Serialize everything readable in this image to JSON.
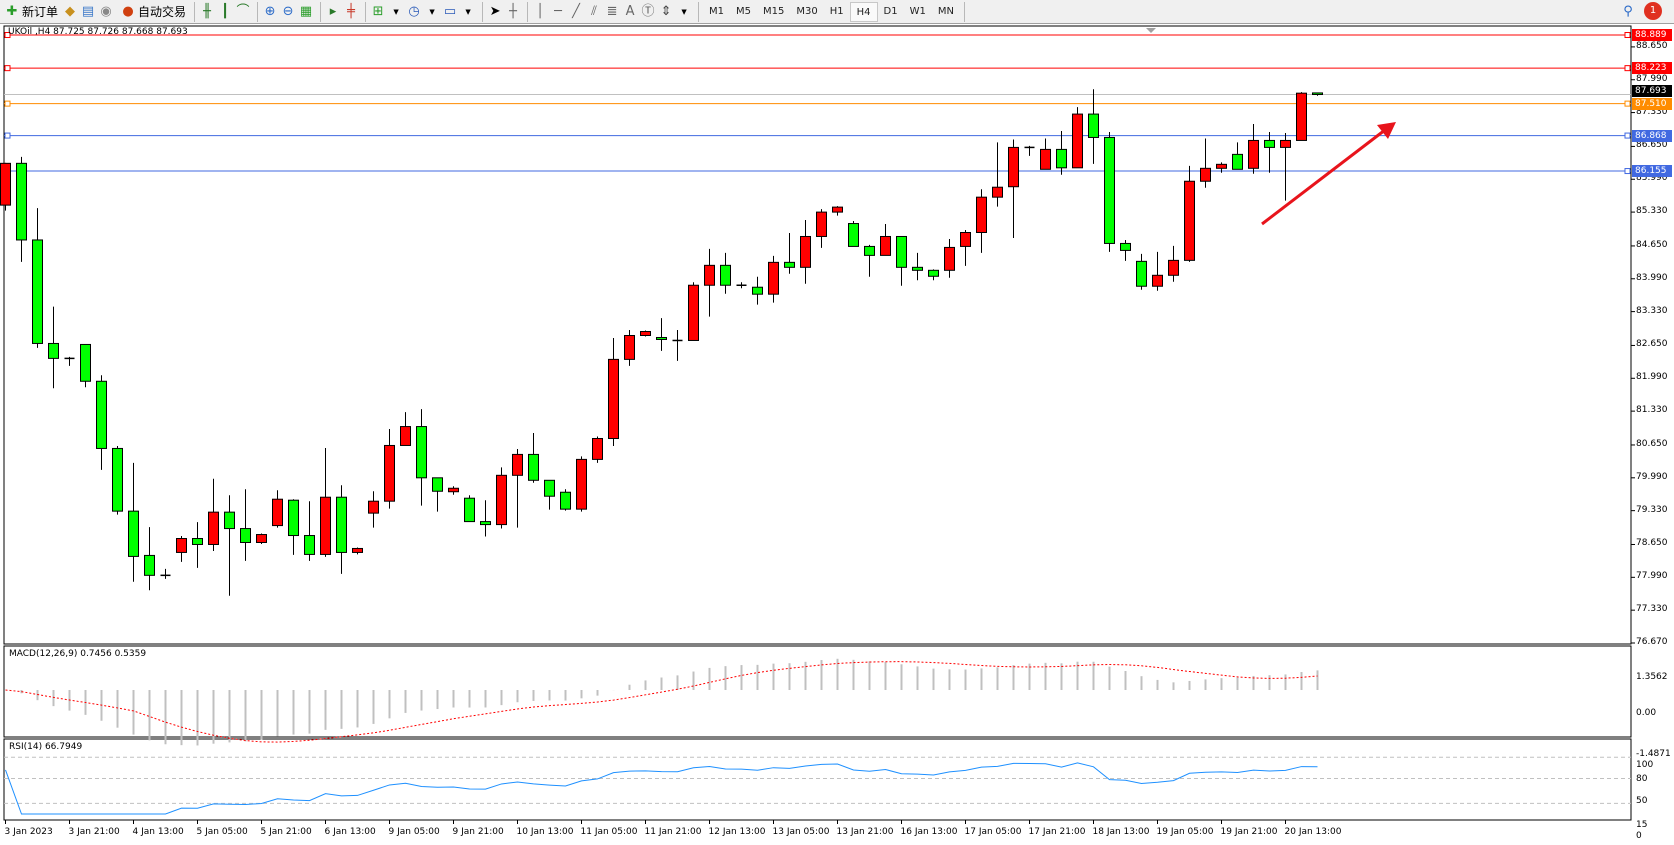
{
  "toolbar": {
    "new_order_label": "新订单",
    "auto_trading_label": "自动交易",
    "timeframes": [
      "M1",
      "M5",
      "M15",
      "M30",
      "H1",
      "H4",
      "D1",
      "W1",
      "MN"
    ],
    "active_timeframe": "H4",
    "notification_count": "1"
  },
  "chart_header": {
    "symbol_line": "UKOil ,H4  87.725 87.726 87.668 87.693"
  },
  "macd_header": "MACD(12,26,9) 0.7456 0.5359",
  "rsi_header": "RSI(14) 66.7949",
  "price_axis": [
    "88.650",
    "87.990",
    "87.330",
    "86.650",
    "85.990",
    "85.330",
    "84.650",
    "83.990",
    "83.330",
    "82.650",
    "81.990",
    "81.330",
    "80.650",
    "79.990",
    "79.330",
    "78.650",
    "77.990",
    "77.330",
    "76.670"
  ],
  "macd_axis": [
    "1.3562",
    "0.00",
    "-1.4871"
  ],
  "rsi_axis": [
    "100",
    "80",
    "50",
    "15",
    "0"
  ],
  "levels": [
    {
      "price": "88.889",
      "color": "#ff0000"
    },
    {
      "price": "88.223",
      "color": "#ff0000"
    },
    {
      "price": "87.510",
      "color": "#ff8c00"
    },
    {
      "price": "86.868",
      "color": "#4169e1"
    },
    {
      "price": "86.155",
      "color": "#4169e1"
    }
  ],
  "current_price": {
    "price": "87.693",
    "color": "#000000"
  },
  "colors": {
    "bull": "#ff0000",
    "bear": "#00ff00",
    "macd_hist": "#c0c0c0",
    "macd_signal": "#ff0000",
    "rsi": "#1e90ff",
    "arrow": "#e8141c"
  },
  "chart_data": {
    "type": "candlestick",
    "ylim": [
      76.65,
      89.07
    ],
    "time_labels": [
      "3 Jan 2023",
      "3 Jan 21:00",
      "4 Jan 13:00",
      "5 Jan 05:00",
      "5 Jan 21:00",
      "6 Jan 13:00",
      "9 Jan 05:00",
      "9 Jan 21:00",
      "10 Jan 13:00",
      "11 Jan 05:00",
      "11 Jan 21:00",
      "12 Jan 13:00",
      "13 Jan 05:00",
      "13 Jan 21:00",
      "16 Jan 13:00",
      "17 Jan 05:00",
      "17 Jan 21:00",
      "18 Jan 13:00",
      "19 Jan 05:00",
      "19 Jan 21:00",
      "20 Jan 13:00"
    ],
    "ohlc": [
      [
        85.47,
        86.32,
        85.36,
        86.31
      ],
      [
        86.31,
        86.44,
        84.33,
        84.77
      ],
      [
        84.77,
        85.41,
        82.6,
        82.69
      ],
      [
        82.69,
        83.43,
        81.79,
        82.39
      ],
      [
        82.39,
        82.42,
        82.24,
        82.38
      ],
      [
        82.67,
        82.67,
        81.81,
        81.93
      ],
      [
        81.93,
        82.05,
        80.15,
        80.58
      ],
      [
        80.58,
        80.63,
        79.25,
        79.32
      ],
      [
        79.32,
        80.29,
        77.9,
        78.41
      ],
      [
        78.43,
        79.0,
        77.73,
        78.03
      ],
      [
        78.02,
        78.16,
        77.96,
        78.03
      ],
      [
        78.49,
        78.82,
        78.3,
        78.77
      ],
      [
        78.77,
        79.1,
        78.18,
        78.65
      ],
      [
        78.65,
        79.97,
        78.52,
        79.3
      ],
      [
        79.3,
        79.64,
        77.62,
        78.97
      ],
      [
        78.97,
        79.76,
        78.32,
        78.69
      ],
      [
        78.69,
        78.87,
        78.66,
        78.85
      ],
      [
        79.03,
        79.74,
        78.99,
        79.56
      ],
      [
        79.54,
        79.56,
        78.44,
        78.83
      ],
      [
        78.83,
        79.52,
        78.32,
        78.45
      ],
      [
        78.45,
        80.59,
        78.4,
        79.6
      ],
      [
        79.6,
        79.84,
        78.06,
        78.49
      ],
      [
        78.49,
        78.59,
        78.45,
        78.57
      ],
      [
        79.28,
        79.72,
        78.99,
        79.52
      ],
      [
        79.52,
        80.97,
        79.37,
        80.64
      ],
      [
        80.64,
        81.31,
        80.64,
        81.02
      ],
      [
        81.02,
        81.37,
        79.43,
        79.99
      ],
      [
        79.99,
        79.99,
        79.31,
        79.72
      ],
      [
        79.71,
        79.82,
        79.65,
        79.78
      ],
      [
        79.58,
        79.64,
        79.11,
        79.11
      ],
      [
        79.11,
        79.54,
        78.81,
        79.05
      ],
      [
        79.05,
        80.2,
        78.97,
        80.04
      ],
      [
        80.04,
        80.57,
        78.99,
        80.46
      ],
      [
        80.46,
        80.89,
        79.89,
        79.94
      ],
      [
        79.94,
        79.94,
        79.35,
        79.62
      ],
      [
        79.7,
        79.76,
        79.33,
        79.36
      ],
      [
        79.36,
        80.42,
        79.31,
        80.36
      ],
      [
        80.36,
        80.82,
        80.29,
        80.78
      ],
      [
        80.78,
        82.8,
        80.63,
        82.37
      ],
      [
        82.37,
        82.96,
        82.24,
        82.85
      ],
      [
        82.85,
        82.95,
        82.83,
        82.93
      ],
      [
        82.81,
        83.2,
        82.54,
        82.77
      ],
      [
        82.75,
        82.96,
        82.34,
        82.75
      ],
      [
        82.75,
        83.92,
        82.75,
        83.86
      ],
      [
        83.86,
        84.59,
        83.23,
        84.26
      ],
      [
        84.26,
        84.51,
        83.69,
        83.86
      ],
      [
        83.86,
        83.92,
        83.8,
        83.85
      ],
      [
        83.82,
        84.03,
        83.47,
        83.68
      ],
      [
        83.68,
        84.45,
        83.51,
        84.32
      ],
      [
        84.32,
        84.91,
        84.09,
        84.22
      ],
      [
        84.22,
        85.17,
        83.89,
        84.84
      ],
      [
        84.84,
        85.39,
        84.61,
        85.33
      ],
      [
        85.33,
        85.45,
        85.26,
        85.43
      ],
      [
        85.1,
        85.15,
        84.64,
        84.64
      ],
      [
        84.64,
        84.67,
        84.03,
        84.46
      ],
      [
        84.46,
        85.09,
        84.46,
        84.84
      ],
      [
        84.84,
        84.84,
        83.85,
        84.22
      ],
      [
        84.22,
        84.51,
        83.96,
        84.16
      ],
      [
        84.16,
        84.18,
        83.96,
        84.04
      ],
      [
        84.16,
        84.79,
        84.01,
        84.62
      ],
      [
        84.64,
        84.97,
        84.25,
        84.92
      ],
      [
        84.92,
        85.79,
        84.51,
        85.63
      ],
      [
        85.63,
        86.73,
        85.44,
        85.83
      ],
      [
        85.84,
        86.79,
        84.81,
        86.63
      ],
      [
        86.63,
        86.66,
        86.46,
        86.62
      ],
      [
        86.19,
        86.81,
        86.19,
        86.59
      ],
      [
        86.59,
        86.96,
        86.08,
        86.22
      ],
      [
        86.22,
        87.44,
        86.22,
        87.3
      ],
      [
        87.3,
        87.8,
        86.3,
        86.83
      ],
      [
        86.83,
        86.94,
        84.53,
        84.7
      ],
      [
        84.7,
        84.77,
        84.35,
        84.56
      ],
      [
        84.34,
        84.49,
        83.77,
        83.84
      ],
      [
        83.84,
        84.53,
        83.75,
        84.06
      ],
      [
        84.06,
        84.65,
        83.93,
        84.36
      ],
      [
        84.36,
        86.26,
        84.33,
        85.95
      ],
      [
        85.95,
        86.81,
        85.82,
        86.21
      ],
      [
        86.21,
        86.33,
        86.12,
        86.29
      ],
      [
        86.49,
        86.73,
        86.19,
        86.19
      ],
      [
        86.21,
        87.1,
        86.1,
        86.77
      ],
      [
        86.77,
        86.94,
        86.12,
        86.63
      ],
      [
        86.63,
        86.92,
        85.56,
        86.77
      ],
      [
        86.77,
        87.74,
        86.77,
        87.72
      ],
      [
        87.725,
        87.726,
        87.668,
        87.693
      ]
    ],
    "macd": {
      "params": "12,26,9",
      "value": 0.7456,
      "signal": 0.5359,
      "ylim": [
        -1.4871,
        1.3562
      ]
    },
    "rsi": {
      "period": 14,
      "value": 66.7949,
      "levels": [
        80,
        50,
        15
      ],
      "ylim": [
        0,
        100
      ]
    }
  }
}
